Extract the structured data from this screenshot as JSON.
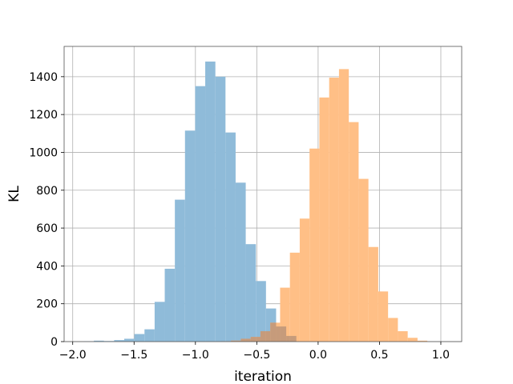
{
  "chart_data": {
    "type": "histogram",
    "xlabel": "iteration",
    "ylabel": "KL",
    "xlim": [
      -2.07,
      1.17
    ],
    "ylim": [
      0,
      1560
    ],
    "x_ticks": [
      -2.0,
      -1.5,
      -1.0,
      -0.5,
      0.0,
      0.5,
      1.0
    ],
    "x_tick_labels": [
      "−2.0",
      "−1.5",
      "−1.0",
      "−0.5",
      "0.0",
      "0.5",
      "1.0"
    ],
    "y_ticks": [
      0,
      200,
      400,
      600,
      800,
      1000,
      1200,
      1400
    ],
    "y_tick_labels": [
      "0",
      "200",
      "400",
      "600",
      "800",
      "1000",
      "1200",
      "1400"
    ],
    "grid": true,
    "overlap_color": "#c69b7b",
    "series": [
      {
        "color": "#8fbbd9",
        "bin_edges": [
          -1.91,
          -1.8275,
          -1.745,
          -1.6625,
          -1.58,
          -1.4975,
          -1.415,
          -1.3325,
          -1.25,
          -1.1675,
          -1.085,
          -1.0025,
          -0.92,
          -0.8375,
          -0.755,
          -0.6725,
          -0.59,
          -0.5075,
          -0.425,
          -0.3425,
          -0.26,
          -0.1775
        ],
        "counts": [
          2,
          5,
          3,
          8,
          15,
          40,
          65,
          210,
          385,
          750,
          1115,
          1350,
          1480,
          1400,
          1105,
          840,
          515,
          320,
          175,
          80,
          30
        ]
      },
      {
        "color": "#ffbf86",
        "bin_edges": [
          -0.79,
          -0.71,
          -0.63,
          -0.55,
          -0.47,
          -0.39,
          -0.31,
          -0.23,
          -0.15,
          -0.07,
          0.01,
          0.09,
          0.17,
          0.25,
          0.33,
          0.41,
          0.49,
          0.57,
          0.65,
          0.73,
          0.81,
          0.89
        ],
        "counts": [
          2,
          5,
          15,
          25,
          55,
          100,
          285,
          470,
          650,
          1020,
          1290,
          1395,
          1440,
          1160,
          860,
          500,
          265,
          125,
          55,
          20,
          5
        ]
      }
    ]
  }
}
